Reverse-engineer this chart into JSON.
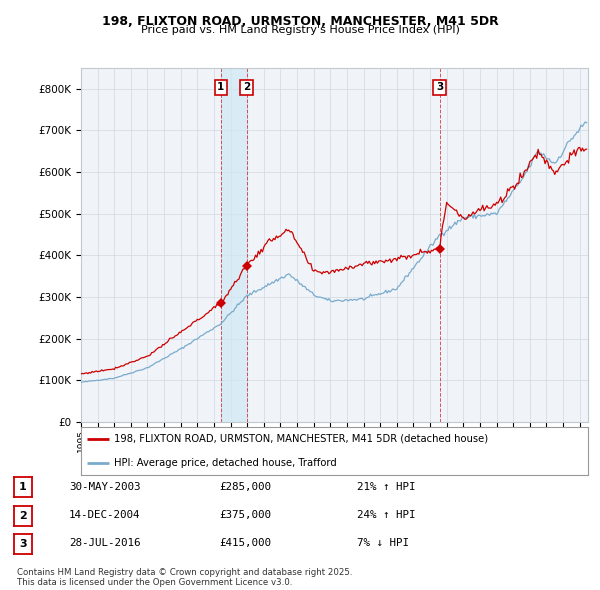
{
  "title1": "198, FLIXTON ROAD, URMSTON, MANCHESTER, M41 5DR",
  "title2": "Price paid vs. HM Land Registry's House Price Index (HPI)",
  "legend_red": "198, FLIXTON ROAD, URMSTON, MANCHESTER, M41 5DR (detached house)",
  "legend_blue": "HPI: Average price, detached house, Trafford",
  "transactions": [
    {
      "label": "1",
      "date": "30-MAY-2003",
      "price": 285000,
      "hpi_pct": "21% ↑ HPI",
      "year": 2003.41
    },
    {
      "label": "2",
      "date": "14-DEC-2004",
      "price": 375000,
      "hpi_pct": "24% ↑ HPI",
      "year": 2004.96
    },
    {
      "label": "3",
      "date": "28-JUL-2016",
      "price": 415000,
      "hpi_pct": "7% ↓ HPI",
      "year": 2016.57
    }
  ],
  "footer": "Contains HM Land Registry data © Crown copyright and database right 2025.\nThis data is licensed under the Open Government Licence v3.0.",
  "ylim": [
    0,
    850000
  ],
  "yticks": [
    0,
    100000,
    200000,
    300000,
    400000,
    500000,
    600000,
    700000,
    800000
  ],
  "ytick_labels": [
    "£0",
    "£100K",
    "£200K",
    "£300K",
    "£400K",
    "£500K",
    "£600K",
    "£700K",
    "£800K"
  ],
  "red_color": "#cc0000",
  "blue_color": "#7aabcc",
  "shade_color": "#d0e8f5",
  "background_color": "#f0f4f8"
}
